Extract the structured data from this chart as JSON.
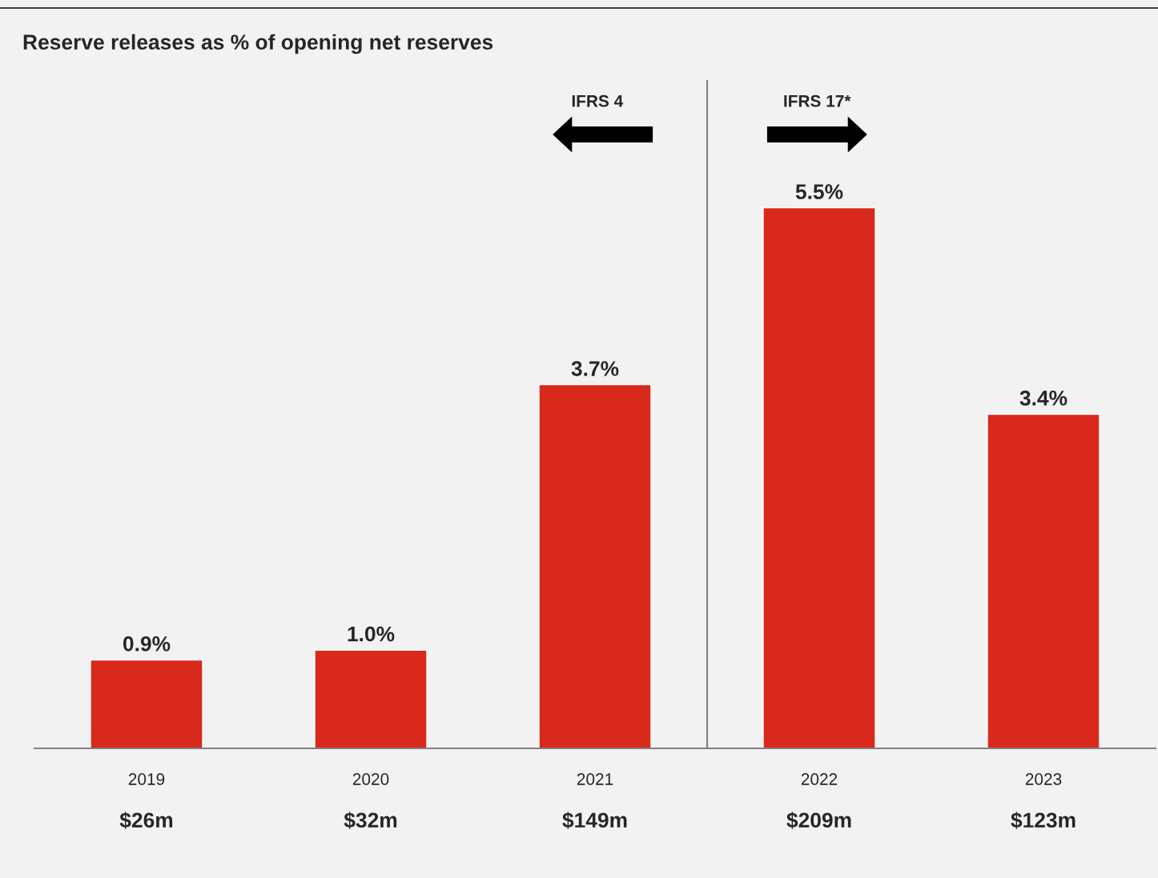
{
  "chart_data": {
    "type": "bar",
    "title": "Reserve releases as % of opening net reserves",
    "categories": [
      "2019",
      "2020",
      "2021",
      "2022",
      "2023"
    ],
    "values": [
      0.9,
      1.0,
      3.7,
      5.5,
      3.4
    ],
    "color": "#d9291c",
    "value_labels": [
      "0.9%",
      "1.0%",
      "3.7%",
      "5.5%",
      "3.4%"
    ],
    "ylim": [
      0,
      6.8
    ],
    "annotations": [
      "IFRS 4",
      "IFRS 17*",
      "$26m",
      "$32m",
      "$149m",
      "$209m",
      "$123m"
    ],
    "grid": false,
    "legend": false
  }
}
